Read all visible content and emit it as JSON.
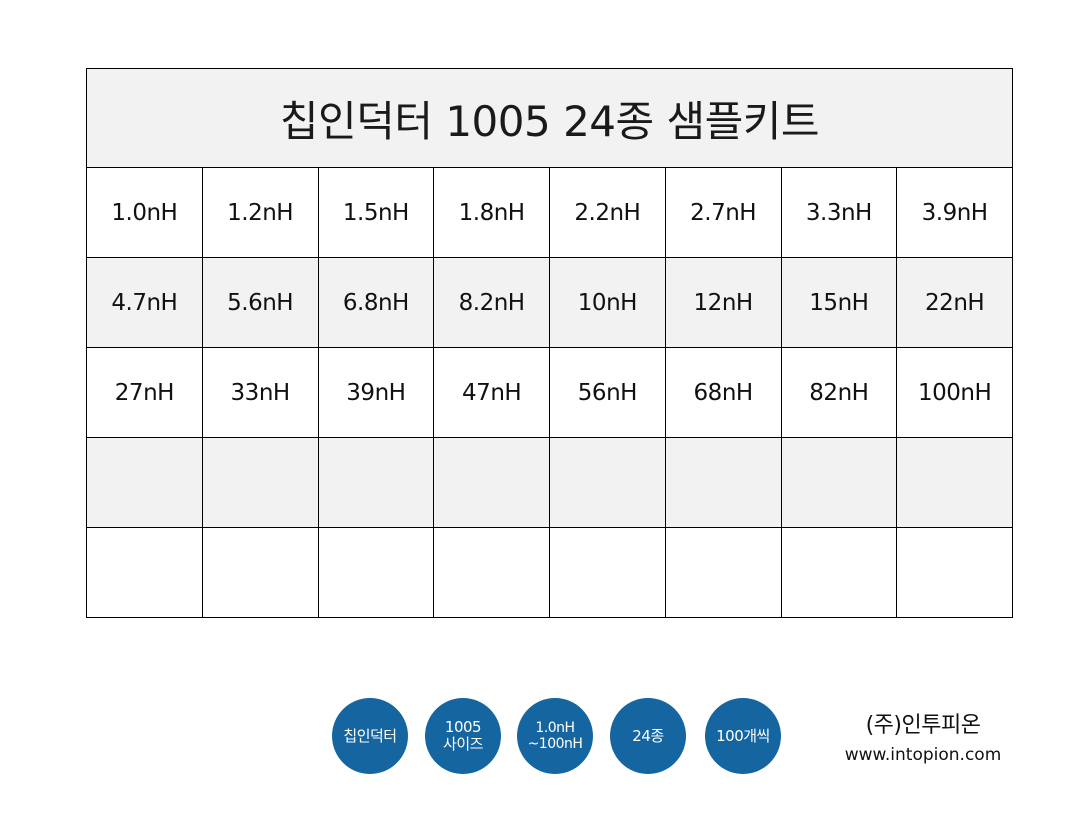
{
  "title": "칩인덕터 1005 24종 샘플키트",
  "rows": [
    [
      "1.0nH",
      "1.2nH",
      "1.5nH",
      "1.8nH",
      "2.2nH",
      "2.7nH",
      "3.3nH",
      "3.9nH"
    ],
    [
      "4.7nH",
      "5.6nH",
      "6.8nH",
      "8.2nH",
      "10nH",
      "12nH",
      "15nH",
      "22nH"
    ],
    [
      "27nH",
      "33nH",
      "39nH",
      "47nH",
      "56nH",
      "68nH",
      "82nH",
      "100nH"
    ],
    [
      "",
      "",
      "",
      "",
      "",
      "",
      "",
      ""
    ],
    [
      "",
      "",
      "",
      "",
      "",
      "",
      "",
      ""
    ]
  ],
  "badges": [
    {
      "line1": "칩인덕터",
      "line2": ""
    },
    {
      "line1": "1005",
      "line2": "사이즈"
    },
    {
      "line1": "1.0nH",
      "line2": "~100nH"
    },
    {
      "line1": "24종",
      "line2": ""
    },
    {
      "line1": "100개씩",
      "line2": ""
    }
  ],
  "company": {
    "name": "(주)인투피온",
    "url": "www.intopion.com"
  },
  "colors": {
    "badge": "#1565a0",
    "shade": "#f2f2f2",
    "border": "#000000"
  }
}
